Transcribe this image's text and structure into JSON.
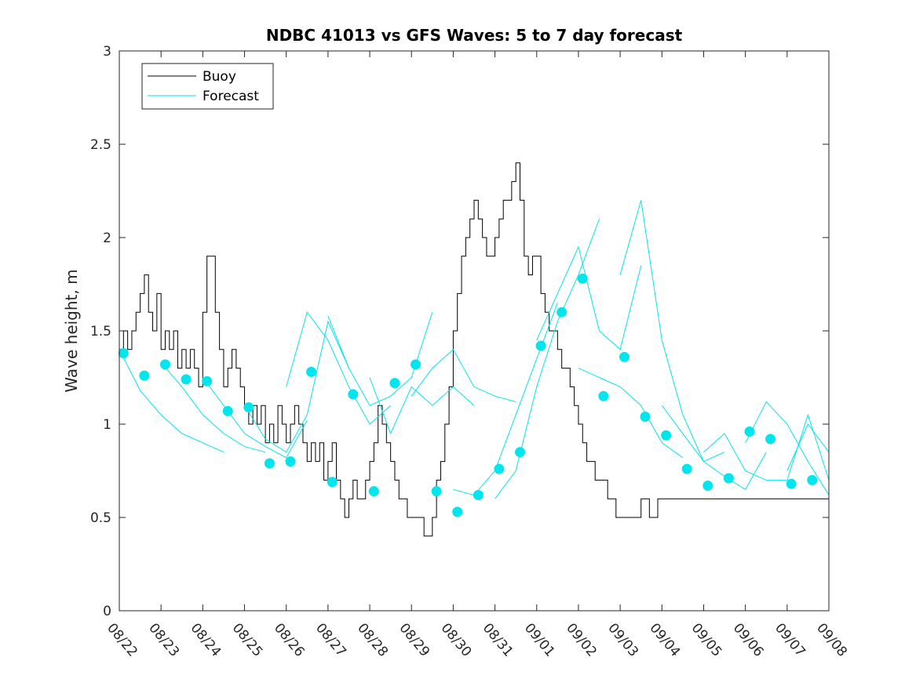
{
  "chart_data": {
    "type": "line",
    "title": "NDBC 41013 vs GFS Waves: 5 to 7 day forecast",
    "xlabel": "",
    "ylabel": "Wave height, m",
    "xlim": [
      0,
      17
    ],
    "ylim": [
      0,
      3
    ],
    "yticks": [
      0,
      0.5,
      1,
      1.5,
      2,
      2.5,
      3
    ],
    "ytick_labels": [
      "0",
      "0.5",
      "1",
      "1.5",
      "2",
      "2.5",
      "3"
    ],
    "xtick_labels": [
      "08/22",
      "08/23",
      "08/24",
      "08/25",
      "08/26",
      "08/27",
      "08/28",
      "08/29",
      "08/30",
      "08/31",
      "09/01",
      "09/02",
      "09/03",
      "09/04",
      "09/05",
      "09/06",
      "09/07",
      "09/08"
    ],
    "legend": {
      "position": "top-left",
      "entries": [
        {
          "label": "Buoy",
          "color": "#000000"
        },
        {
          "label": "Forecast",
          "color": "#00e5ee"
        }
      ]
    },
    "colors": {
      "buoy": "#000000",
      "forecast": "#00e5ee",
      "axis": "#262626"
    },
    "series": [
      {
        "name": "Buoy",
        "x": [
          0,
          0.1,
          0.2,
          0.3,
          0.4,
          0.5,
          0.6,
          0.7,
          0.8,
          0.9,
          1.0,
          1.1,
          1.2,
          1.3,
          1.4,
          1.5,
          1.6,
          1.7,
          1.8,
          1.9,
          2.0,
          2.1,
          2.2,
          2.3,
          2.4,
          2.5,
          2.6,
          2.7,
          2.8,
          2.9,
          3.0,
          3.1,
          3.2,
          3.3,
          3.4,
          3.5,
          3.6,
          3.7,
          3.8,
          3.9,
          4.0,
          4.1,
          4.2,
          4.3,
          4.4,
          4.5,
          4.6,
          4.7,
          4.8,
          4.9,
          5.0,
          5.1,
          5.2,
          5.3,
          5.4,
          5.5,
          5.6,
          5.7,
          5.8,
          5.9,
          6.0,
          6.1,
          6.2,
          6.3,
          6.4,
          6.5,
          6.6,
          6.7,
          6.8,
          6.9,
          7.0,
          7.1,
          7.2,
          7.3,
          7.4,
          7.5,
          7.6,
          7.7,
          7.8,
          7.9,
          8.0,
          8.1,
          8.2,
          8.3,
          8.4,
          8.5,
          8.6,
          8.7,
          8.8,
          8.9,
          9.0,
          9.1,
          9.2,
          9.3,
          9.4,
          9.5,
          9.6,
          9.7,
          9.8,
          9.9,
          10.0,
          10.1,
          10.2,
          10.3,
          10.4,
          10.5,
          10.6,
          10.7,
          10.8,
          10.9,
          11.0,
          11.1,
          11.2,
          11.3,
          11.4,
          11.5,
          11.6,
          11.7,
          11.8,
          11.9,
          12.0,
          12.1,
          12.2,
          12.3,
          12.4,
          12.5,
          12.6,
          12.7,
          12.8,
          12.9,
          13.0,
          13.1,
          13.2,
          13.3,
          13.4,
          13.5,
          13.6,
          13.7,
          13.8,
          13.9,
          14.0,
          14.1,
          14.2,
          14.3,
          14.4,
          14.5,
          14.6,
          14.7,
          14.8,
          14.9,
          15.0,
          15.1,
          15.2,
          15.3,
          15.4,
          15.5,
          15.6,
          15.7,
          15.8,
          15.9,
          16.0,
          16.1,
          16.2,
          16.3,
          16.4,
          16.5,
          16.6,
          16.7,
          16.8,
          16.9,
          17.0
        ],
        "y": [
          1.4,
          1.5,
          1.4,
          1.5,
          1.6,
          1.7,
          1.8,
          1.6,
          1.5,
          1.7,
          1.4,
          1.5,
          1.4,
          1.5,
          1.3,
          1.4,
          1.3,
          1.4,
          1.3,
          1.2,
          1.6,
          1.9,
          1.9,
          1.6,
          1.4,
          1.2,
          1.3,
          1.4,
          1.3,
          1.2,
          1.1,
          1.0,
          1.1,
          1.0,
          1.1,
          0.9,
          1.0,
          0.9,
          1.1,
          1.0,
          0.9,
          1.0,
          1.1,
          1.0,
          0.9,
          0.8,
          0.9,
          0.8,
          0.9,
          0.7,
          0.8,
          0.9,
          0.7,
          0.6,
          0.5,
          0.6,
          0.7,
          0.6,
          0.6,
          0.7,
          0.8,
          0.9,
          1.1,
          1.0,
          0.9,
          0.8,
          0.7,
          0.6,
          0.6,
          0.5,
          0.5,
          0.5,
          0.5,
          0.4,
          0.4,
          0.5,
          0.7,
          0.8,
          1.0,
          1.2,
          1.5,
          1.7,
          1.9,
          2.0,
          2.1,
          2.2,
          2.1,
          2.0,
          1.9,
          1.9,
          2.0,
          2.1,
          2.2,
          2.2,
          2.3,
          2.4,
          2.2,
          1.9,
          1.8,
          1.9,
          1.9,
          1.7,
          1.6,
          1.5,
          1.5,
          1.4,
          1.3,
          1.3,
          1.2,
          1.1,
          1.0,
          0.9,
          0.8,
          0.8,
          0.7,
          0.7,
          0.7,
          0.6,
          0.6,
          0.5,
          0.5,
          0.5,
          0.5,
          0.5,
          0.5,
          0.6,
          0.6,
          0.5,
          0.5,
          0.6,
          0.6,
          0.6,
          0.6,
          0.6,
          0.6,
          0.6,
          0.6,
          0.6,
          0.6,
          0.6,
          0.6,
          0.6,
          0.6,
          0.6,
          0.6,
          0.6,
          0.6,
          0.6,
          0.6,
          0.6,
          0.6,
          0.6,
          0.6,
          0.6,
          0.6,
          0.6,
          0.6,
          0.6,
          0.6,
          0.6,
          0.6,
          0.6,
          0.6,
          0.6,
          0.6,
          0.6,
          0.6,
          0.6,
          0.6,
          0.6,
          0.6
        ]
      },
      {
        "name": "Forecast 08/22",
        "x": [
          0,
          0.5,
          1,
          1.5,
          2,
          2.5
        ],
        "y": [
          1.4,
          1.18,
          1.05,
          0.95,
          0.9,
          0.85
        ]
      },
      {
        "name": "Forecast 08/23",
        "x": [
          1,
          1.5,
          2,
          2.5,
          3,
          3.5
        ],
        "y": [
          1.33,
          1.2,
          1.05,
          0.95,
          0.88,
          0.85
        ]
      },
      {
        "name": "Forecast 08/24",
        "x": [
          2,
          2.5,
          3,
          3.5,
          4,
          4.5
        ],
        "y": [
          1.25,
          1.1,
          0.95,
          0.88,
          0.82,
          1.02
        ]
      },
      {
        "name": "Forecast 08/25",
        "x": [
          3,
          3.5,
          4,
          4.5,
          5,
          5.5
        ],
        "y": [
          1.1,
          0.92,
          0.85,
          1.05,
          1.55,
          1.3
        ]
      },
      {
        "name": "Forecast 08/26",
        "x": [
          4,
          4.5,
          5,
          5.5,
          6,
          6.5
        ],
        "y": [
          1.2,
          1.6,
          1.45,
          1.2,
          1.0,
          1.1
        ]
      },
      {
        "name": "Forecast 08/27",
        "x": [
          5,
          5.5,
          6,
          6.5,
          7,
          7.5
        ],
        "y": [
          1.58,
          1.3,
          1.1,
          1.15,
          1.25,
          1.6
        ]
      },
      {
        "name": "Forecast 08/28",
        "x": [
          6,
          6.5,
          7,
          7.5,
          8,
          8.5
        ],
        "y": [
          1.25,
          0.95,
          1.2,
          1.1,
          1.2,
          1.1
        ]
      },
      {
        "name": "Forecast 08/29",
        "x": [
          7,
          7.5,
          8,
          8.5,
          9,
          9.5
        ],
        "y": [
          1.15,
          1.3,
          1.4,
          1.2,
          1.15,
          1.12
        ]
      },
      {
        "name": "Forecast 08/30",
        "x": [
          8,
          8.5,
          9,
          9.5,
          10,
          10.5
        ],
        "y": [
          0.65,
          0.62,
          0.75,
          1.05,
          1.35,
          1.65
        ]
      },
      {
        "name": "Forecast 08/31",
        "x": [
          9,
          9.5,
          10,
          10.5,
          11,
          11.5
        ],
        "y": [
          0.6,
          0.75,
          1.2,
          1.55,
          1.8,
          2.1
        ]
      },
      {
        "name": "Forecast 09/01",
        "x": [
          10,
          10.5,
          11,
          11.5,
          12,
          12.5
        ],
        "y": [
          1.45,
          1.7,
          1.95,
          1.5,
          1.4,
          1.85
        ]
      },
      {
        "name": "Forecast 09/02",
        "x": [
          11,
          11.5,
          12,
          12.5,
          13,
          13.5
        ],
        "y": [
          1.3,
          1.25,
          1.2,
          1.1,
          0.9,
          0.82
        ]
      },
      {
        "name": "Forecast 09/03",
        "x": [
          12,
          12.5,
          13,
          13.5,
          14,
          14.5
        ],
        "y": [
          1.8,
          2.2,
          1.45,
          1.05,
          0.8,
          0.85
        ]
      },
      {
        "name": "Forecast 09/04",
        "x": [
          13,
          13.5,
          14,
          14.5,
          15,
          15.5
        ],
        "y": [
          1.1,
          0.95,
          0.8,
          0.72,
          0.65,
          0.85
        ]
      },
      {
        "name": "Forecast 09/05",
        "x": [
          14,
          14.5,
          15,
          15.5,
          16,
          16.5,
          17
        ],
        "y": [
          0.85,
          0.95,
          0.75,
          0.7,
          0.7,
          1.05,
          0.7
        ]
      },
      {
        "name": "Forecast 09/06",
        "x": [
          15,
          15.5,
          16,
          16.5,
          17
        ],
        "y": [
          0.9,
          1.12,
          1.0,
          0.8,
          0.62
        ]
      },
      {
        "name": "Forecast 09/07",
        "x": [
          16,
          16.5,
          17
        ],
        "y": [
          0.75,
          1.0,
          0.85
        ]
      },
      {
        "name": "Forecast markers",
        "x": [
          0.1,
          0.6,
          1.1,
          1.6,
          2.1,
          2.6,
          3.1,
          3.6,
          4.1,
          4.6,
          5.1,
          5.6,
          6.1,
          6.6,
          7.1,
          7.6,
          8.1,
          8.6,
          9.1,
          9.6,
          10.1,
          10.6,
          11.1,
          11.6,
          12.1,
          12.6,
          13.1,
          13.6,
          14.1,
          14.6,
          15.1,
          15.6,
          16.1,
          16.6
        ],
        "y": [
          1.38,
          1.26,
          1.32,
          1.24,
          1.23,
          1.07,
          1.09,
          0.79,
          0.8,
          1.28,
          0.69,
          1.16,
          0.64,
          1.22,
          1.32,
          0.64,
          0.53,
          0.62,
          0.76,
          0.85,
          1.42,
          1.6,
          1.78,
          1.15,
          1.36,
          1.04,
          0.94,
          0.76,
          0.67,
          0.71,
          0.96,
          0.92,
          0.68,
          0.7
        ]
      }
    ]
  }
}
